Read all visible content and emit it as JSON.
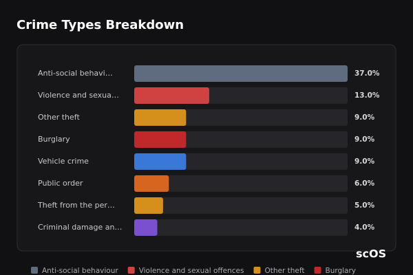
{
  "chart_data": {
    "type": "bar",
    "orientation": "horizontal",
    "title": "Crime Types Breakdown",
    "categories": [
      "Anti-social behavi…",
      "Violence and sexua…",
      "Other theft",
      "Burglary",
      "Vehicle crime",
      "Public order",
      "Theft from the per…",
      "Criminal damage an…"
    ],
    "values": [
      37,
      13,
      9,
      9,
      9,
      6,
      5,
      4
    ],
    "value_labels": [
      "37.0%",
      "13.0%",
      "9.0%",
      "9.0%",
      "9.0%",
      "6.0%",
      "5.0%",
      "4.0%"
    ],
    "colors": [
      "#5f6b7e",
      "#d04242",
      "#d4901a",
      "#c0282a",
      "#3a78d8",
      "#d8651f",
      "#d4901a",
      "#7a4fd0"
    ],
    "legend": [
      {
        "name": "Anti-social behaviour",
        "color": "#5f6b7e"
      },
      {
        "name": "Violence and sexual offences",
        "color": "#d04242"
      },
      {
        "name": "Other theft",
        "color": "#d4901a"
      },
      {
        "name": "Burglary",
        "color": "#c0282a"
      }
    ]
  },
  "logo": "scOS"
}
